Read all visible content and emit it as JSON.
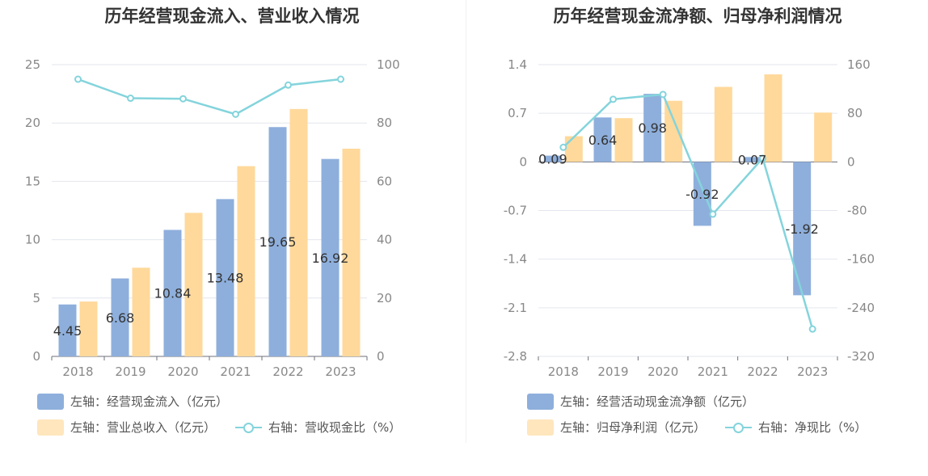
{
  "left_panel": {
    "title": "历年经营现金流入、营业收入情况",
    "legend": {
      "bar1": "左轴：经营现金流入（亿元）",
      "bar2": "左轴：营业总收入（亿元）",
      "line": "右轴：营收现金比（%）"
    }
  },
  "right_panel": {
    "title": "历年经营现金流净额、归母净利润情况",
    "legend": {
      "bar1": "左轴：经营活动现金流净额（亿元）",
      "bar2": "左轴：归母净利润（亿元）",
      "line": "右轴：净现比（%）"
    }
  },
  "colors": {
    "blue": "#8eafdc",
    "orange": "#ffd99b",
    "teal": "#84d4dc",
    "grid": "#e3e6ee",
    "axis_text": "#888888",
    "label": "#333333"
  },
  "chart_data": [
    {
      "type": "bar",
      "title": "历年经营现金流入、营业收入情况",
      "categories": [
        "2018",
        "2019",
        "2020",
        "2021",
        "2022",
        "2023"
      ],
      "series": [
        {
          "name": "左轴：经营现金流入（亿元）",
          "axis": "left",
          "type": "bar",
          "values": [
            4.45,
            6.68,
            10.84,
            13.48,
            19.65,
            16.92
          ],
          "labels": [
            "4.45",
            "6.68",
            "10.84",
            "13.48",
            "19.65",
            "16.92"
          ]
        },
        {
          "name": "左轴：营业总收入（亿元）",
          "axis": "left",
          "type": "bar",
          "values": [
            4.7,
            7.6,
            12.3,
            16.3,
            21.2,
            17.8
          ]
        },
        {
          "name": "右轴：营收现金比（%）",
          "axis": "right",
          "type": "line",
          "values": [
            95,
            88.5,
            88.3,
            83,
            93,
            95
          ]
        }
      ],
      "left_axis": {
        "min": 0,
        "max": 25,
        "ticks": [
          "0",
          "5",
          "10",
          "15",
          "20",
          "25"
        ]
      },
      "right_axis": {
        "min": 0,
        "max": 100,
        "ticks": [
          "0",
          "20",
          "40",
          "60",
          "80",
          "100"
        ]
      },
      "grid": true,
      "legend_position": "bottom"
    },
    {
      "type": "bar",
      "title": "历年经营现金流净额、归母净利润情况",
      "categories": [
        "2018",
        "2019",
        "2020",
        "2021",
        "2022",
        "2023"
      ],
      "series": [
        {
          "name": "左轴：经营活动现金流净额（亿元）",
          "axis": "left",
          "type": "bar",
          "values": [
            0.09,
            0.64,
            0.98,
            -0.92,
            0.07,
            -1.92
          ],
          "labels": [
            "0.09",
            "0.64",
            "0.98",
            "-0.92",
            "0.07",
            "-1.92"
          ]
        },
        {
          "name": "左轴：归母净利润（亿元）",
          "axis": "left",
          "type": "bar",
          "values": [
            0.37,
            0.63,
            0.88,
            1.08,
            1.26,
            0.71
          ]
        },
        {
          "name": "右轴：净现比（%）",
          "axis": "right",
          "type": "line",
          "values": [
            24,
            103,
            111,
            -86,
            6,
            -275
          ]
        }
      ],
      "left_axis": {
        "min": -2.8,
        "max": 1.4,
        "ticks": [
          "-2.8",
          "-2.1",
          "-1.4",
          "-0.7",
          "0",
          "0.7",
          "1.4"
        ]
      },
      "right_axis": {
        "min": -320,
        "max": 160,
        "ticks": [
          "-320",
          "-240",
          "-160",
          "-80",
          "0",
          "80",
          "160"
        ]
      },
      "grid": true,
      "legend_position": "bottom"
    }
  ]
}
